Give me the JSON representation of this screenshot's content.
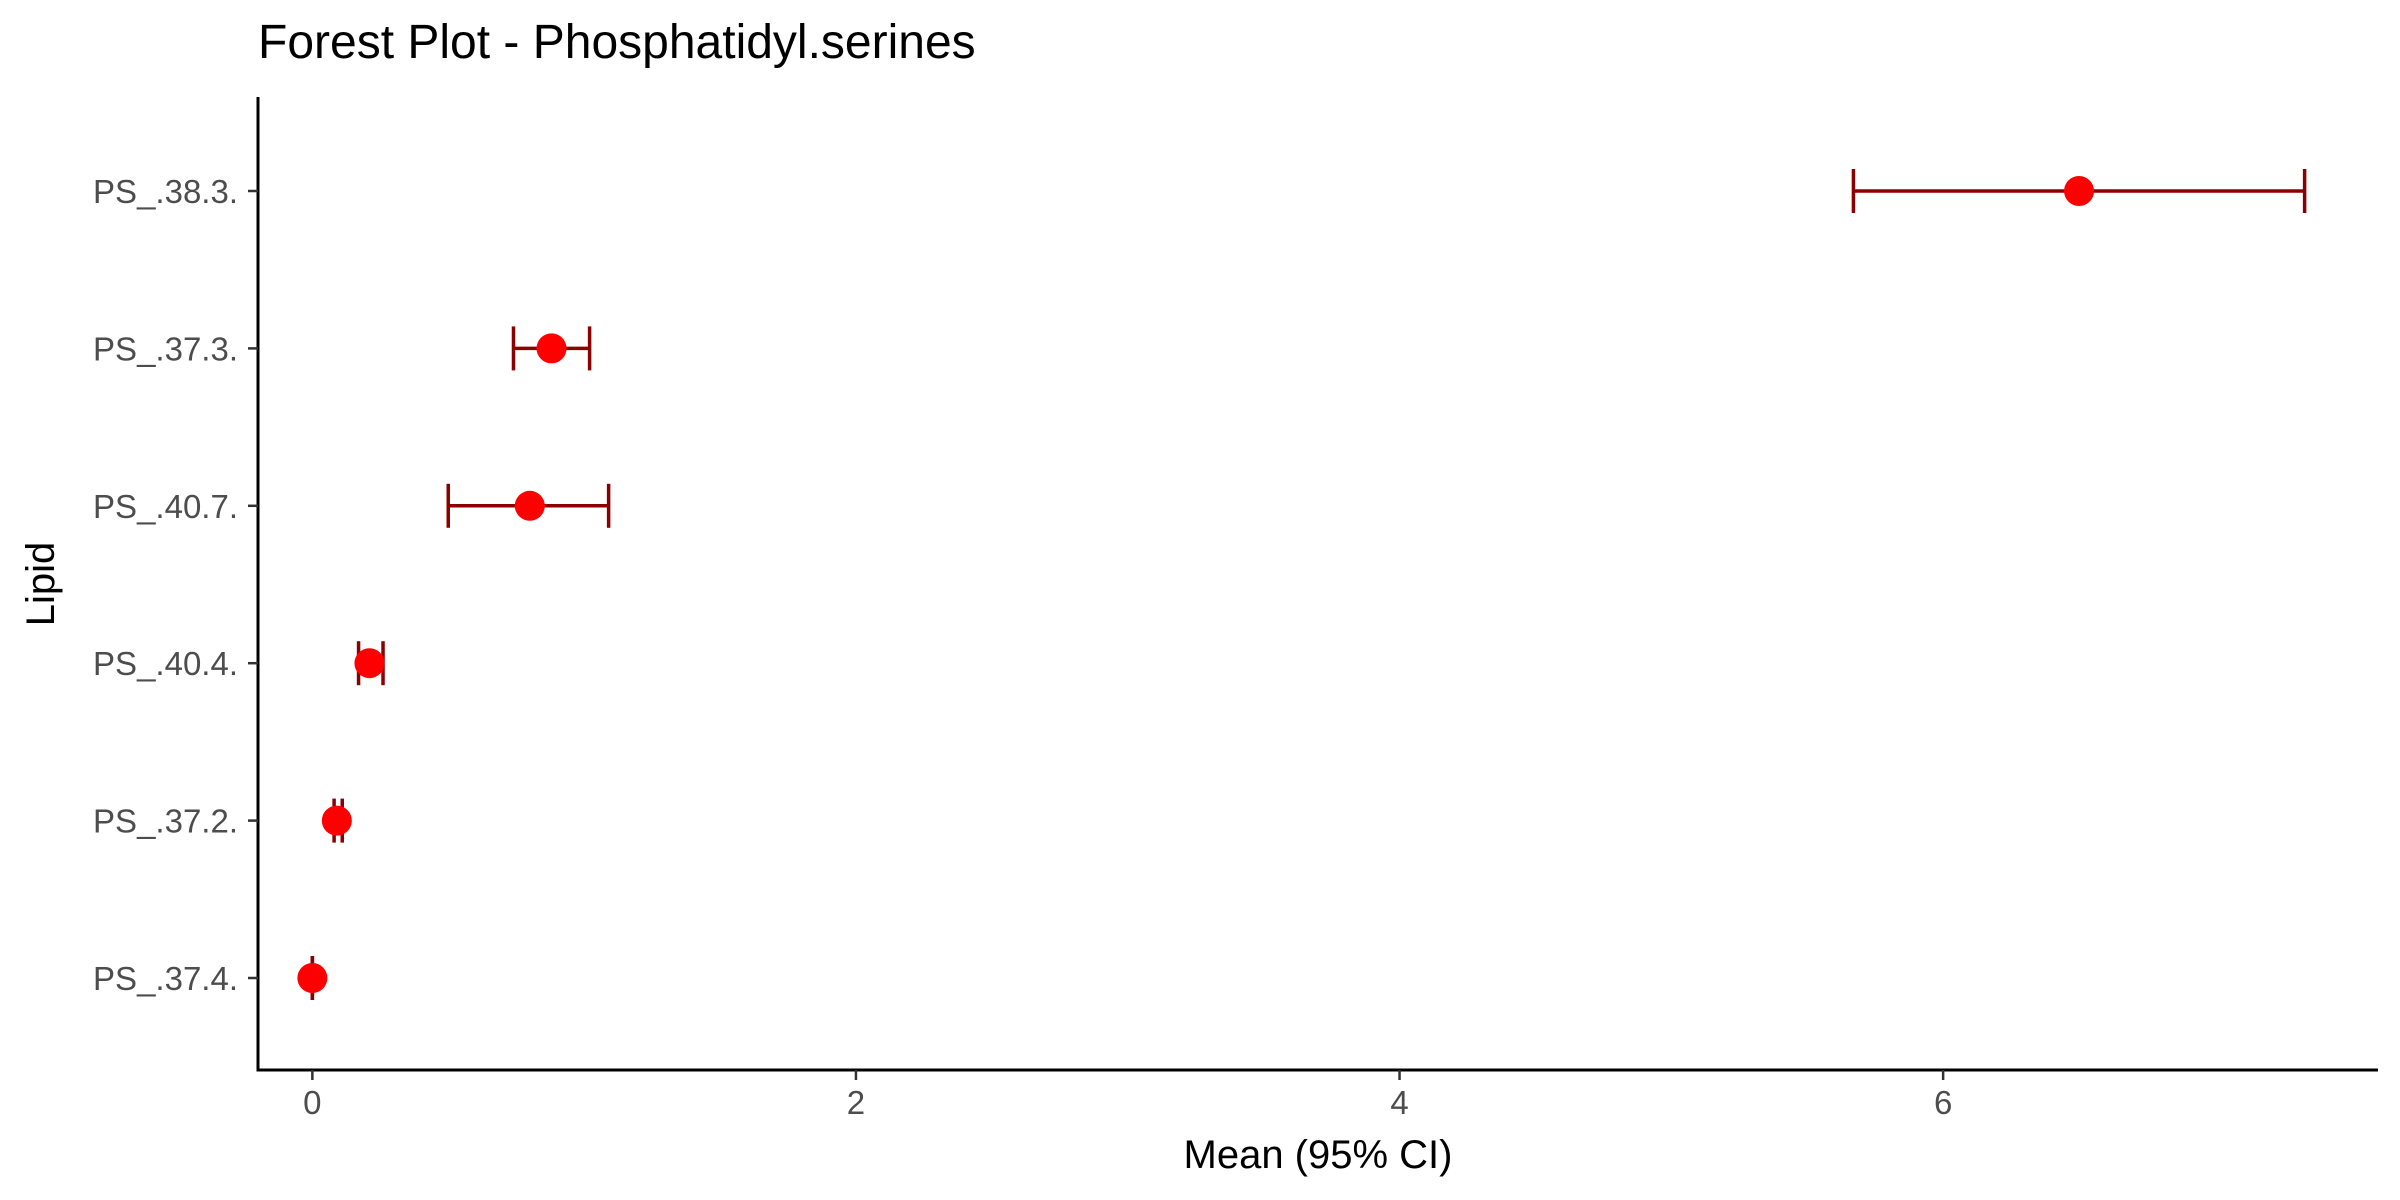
{
  "chart_data": {
    "type": "scatter",
    "title": "Forest Plot - Phosphatidyl.serines",
    "xlabel": "Mean (95% CI)",
    "ylabel": "Lipid",
    "xlim": [
      -0.2,
      7.6
    ],
    "xticks": [
      0,
      2,
      4,
      6
    ],
    "xtick_labels": [
      "0",
      "2",
      "4",
      "6"
    ],
    "grid": false,
    "legend": "none",
    "categories": [
      "PS_.38.3.",
      "PS_.37.3.",
      "PS_.40.7.",
      "PS_.40.4.",
      "PS_.37.2.",
      "PS_.37.4."
    ],
    "points": [
      {
        "label": "PS_.38.3.",
        "mean": 6.5,
        "lower": 5.67,
        "upper": 7.33
      },
      {
        "label": "PS_.37.3.",
        "mean": 0.88,
        "lower": 0.74,
        "upper": 1.02
      },
      {
        "label": "PS_.40.7.",
        "mean": 0.8,
        "lower": 0.5,
        "upper": 1.09
      },
      {
        "label": "PS_.40.4.",
        "mean": 0.21,
        "lower": 0.17,
        "upper": 0.26
      },
      {
        "label": "PS_.37.2.",
        "mean": 0.09,
        "lower": 0.08,
        "upper": 0.11
      },
      {
        "label": "PS_.37.4.",
        "mean": 0.0,
        "lower": 0.0,
        "upper": 0.0
      }
    ],
    "colors": {
      "point": "#ff0000",
      "errorbar": "#8b0000",
      "axis": "#000000",
      "tick_text": "#4d4d4d"
    }
  }
}
